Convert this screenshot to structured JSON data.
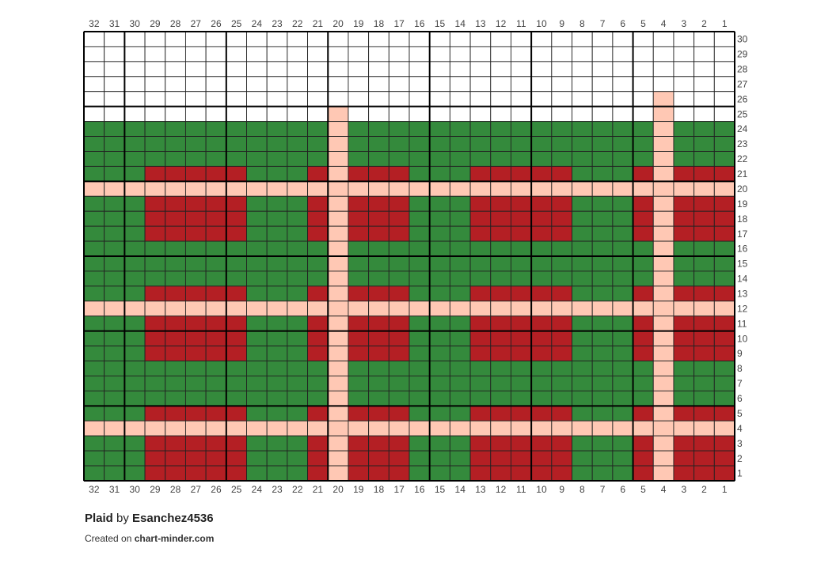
{
  "chart": {
    "columns": [
      32,
      31,
      30,
      29,
      28,
      27,
      26,
      25,
      24,
      23,
      22,
      21,
      20,
      19,
      18,
      17,
      16,
      15,
      14,
      13,
      12,
      11,
      10,
      9,
      8,
      7,
      6,
      5,
      4,
      3,
      2,
      1
    ],
    "rows": [
      30,
      29,
      28,
      27,
      26,
      25,
      24,
      23,
      22,
      21,
      20,
      19,
      18,
      17,
      16,
      15,
      14,
      13,
      12,
      11,
      10,
      9,
      8,
      7,
      6,
      5,
      4,
      3,
      2,
      1
    ]
  },
  "footer": {
    "title": "Plaid",
    "by": "by",
    "author": "Esanchez4536",
    "created_on": "Created on",
    "site": "chart-minder.com"
  }
}
